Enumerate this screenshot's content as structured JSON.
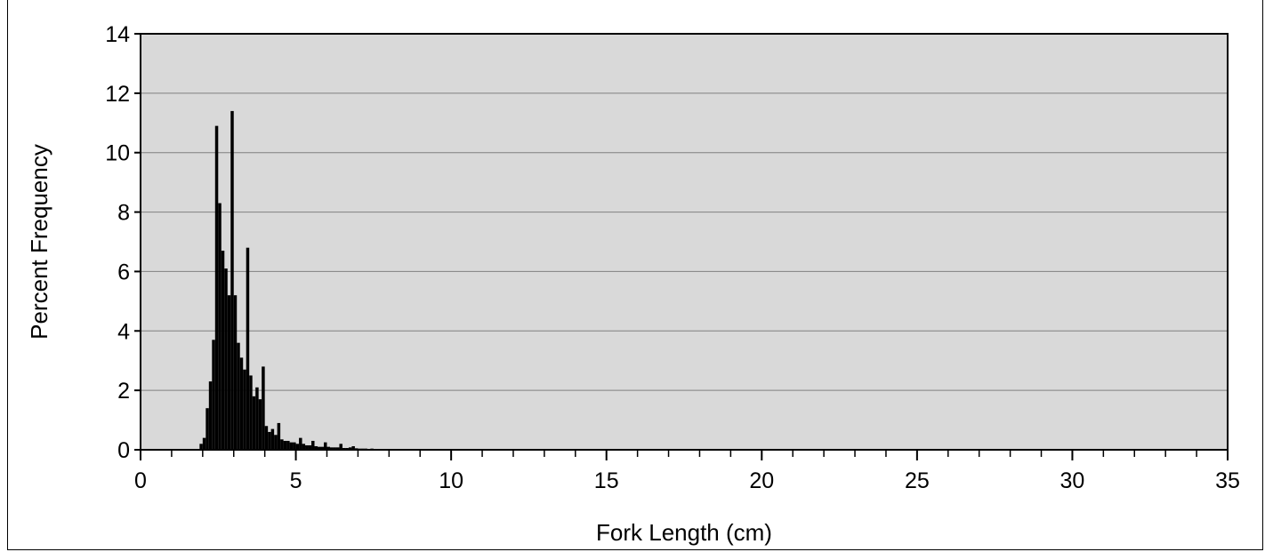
{
  "chart_data": {
    "type": "bar",
    "title": "",
    "xlabel": "Fork Length (cm)",
    "ylabel": "Percent Frequency",
    "xlim": [
      0,
      35
    ],
    "ylim": [
      0,
      14
    ],
    "xticks": [
      0,
      5,
      10,
      15,
      20,
      25,
      30,
      35
    ],
    "yticks": [
      0,
      2,
      4,
      6,
      8,
      10,
      12,
      14
    ],
    "x_minor_step": 1,
    "bin_width": 0.1,
    "grid": "horizontal",
    "legend": "none",
    "plot_background": "#d9d9d9",
    "bar_color": "#000000",
    "x": [
      1.9,
      2.0,
      2.1,
      2.2,
      2.3,
      2.4,
      2.5,
      2.6,
      2.7,
      2.8,
      2.9,
      3.0,
      3.1,
      3.2,
      3.3,
      3.4,
      3.5,
      3.6,
      3.7,
      3.8,
      3.9,
      4.0,
      4.1,
      4.2,
      4.3,
      4.4,
      4.5,
      4.6,
      4.7,
      4.8,
      4.9,
      5.0,
      5.1,
      5.2,
      5.3,
      5.4,
      5.5,
      5.6,
      5.7,
      5.8,
      5.9,
      6.0,
      6.1,
      6.2,
      6.3,
      6.4,
      6.5,
      6.6,
      6.7,
      6.8,
      6.9,
      7.0,
      7.1,
      7.2,
      7.3,
      7.4,
      7.5,
      7.6,
      7.7
    ],
    "values": [
      0.2,
      0.4,
      1.4,
      2.3,
      3.7,
      10.9,
      8.3,
      6.7,
      6.1,
      5.2,
      11.4,
      5.2,
      3.6,
      3.1,
      2.7,
      6.8,
      2.5,
      1.8,
      2.1,
      1.7,
      2.8,
      0.8,
      0.6,
      0.7,
      0.5,
      0.9,
      0.35,
      0.3,
      0.3,
      0.25,
      0.25,
      0.2,
      0.4,
      0.2,
      0.15,
      0.15,
      0.3,
      0.12,
      0.1,
      0.1,
      0.25,
      0.1,
      0.08,
      0.08,
      0.08,
      0.2,
      0.06,
      0.06,
      0.08,
      0.12,
      0.05,
      0.04,
      0.04,
      0.04,
      0.03,
      0.04,
      0.03,
      0.02,
      0.02
    ]
  }
}
